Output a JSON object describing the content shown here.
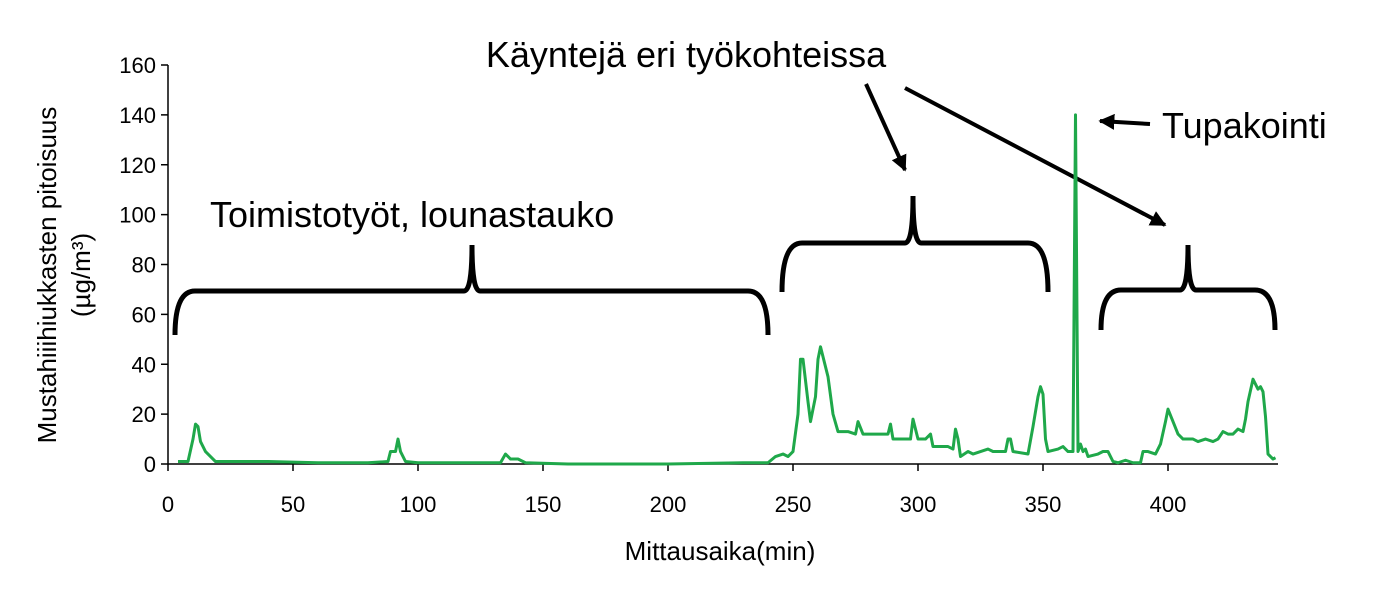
{
  "chart_data": {
    "type": "line",
    "x_label": "Mittausaika(min)",
    "y_label": [
      "Mustahiiihiukkasten pitoisuus",
      "(µg/m³)"
    ],
    "annotations": [
      "Käyntejä eri työkohteissa",
      "Tupakointi",
      "Toimistotyöt, lounastauko"
    ],
    "color": "#1fa84a",
    "grid": false,
    "xlim": [
      0,
      444
    ],
    "xticks": [
      0,
      50,
      100,
      150,
      200,
      250,
      300,
      350,
      400
    ],
    "ylim": [
      0,
      160
    ],
    "yticks": [
      0,
      20,
      40,
      60,
      80,
      100,
      120,
      140,
      160
    ],
    "x": [
      4,
      8,
      10,
      11,
      12,
      13,
      15,
      17,
      19,
      25,
      40,
      60,
      80,
      88,
      89,
      91,
      92,
      93,
      95,
      100,
      120,
      133,
      135,
      137,
      140,
      143,
      160,
      200,
      230,
      240,
      243,
      246,
      248,
      250,
      252,
      253,
      254,
      256,
      257,
      258,
      259,
      260,
      261,
      262,
      264,
      266,
      268,
      272,
      275,
      276,
      278,
      284,
      288,
      289,
      290,
      294,
      297,
      298,
      299,
      300,
      303,
      305,
      306,
      312,
      314,
      315,
      316,
      317,
      320,
      322,
      325,
      328,
      330,
      335,
      336,
      337,
      338,
      344,
      346,
      348,
      349,
      350,
      351,
      352,
      356,
      358,
      360,
      362,
      363,
      364,
      365,
      366,
      367,
      368,
      372,
      374,
      376,
      378,
      380,
      383,
      386,
      389,
      390,
      392,
      395,
      397,
      399,
      400,
      402,
      404,
      406,
      410,
      412,
      415,
      418,
      420,
      422,
      424,
      426,
      428,
      430,
      431,
      432,
      434,
      435,
      436,
      437,
      438,
      439,
      440,
      441,
      442,
      443
    ],
    "values": [
      1,
      1,
      10,
      16,
      15,
      9,
      5,
      3,
      1,
      1,
      1,
      0.5,
      0.5,
      1,
      5,
      5,
      10,
      5,
      1,
      0.5,
      0.5,
      0.5,
      4,
      2,
      2,
      0.5,
      0,
      0,
      0.5,
      0.5,
      3,
      4,
      3,
      5,
      20,
      42,
      42,
      25,
      17,
      22,
      27,
      42,
      47,
      43,
      35,
      20,
      13,
      13,
      12,
      17,
      12,
      12,
      12,
      16,
      10,
      10,
      10,
      18,
      14,
      10,
      10,
      12,
      7,
      7,
      6,
      14,
      10,
      3,
      5,
      4,
      5,
      6,
      5,
      5,
      10,
      10,
      5,
      4,
      15,
      27,
      31,
      28,
      10,
      5,
      6,
      7,
      5,
      5,
      140,
      5,
      8,
      5,
      6,
      3,
      4,
      5,
      5,
      1,
      0.5,
      1.5,
      0.5,
      0.5,
      5,
      5,
      4,
      8,
      17,
      22,
      17,
      12,
      10,
      10,
      9,
      10,
      9,
      10,
      13,
      12,
      12,
      14,
      13,
      18,
      25,
      34,
      32,
      30,
      31,
      29,
      19,
      4,
      3,
      2,
      2.5
    ]
  }
}
